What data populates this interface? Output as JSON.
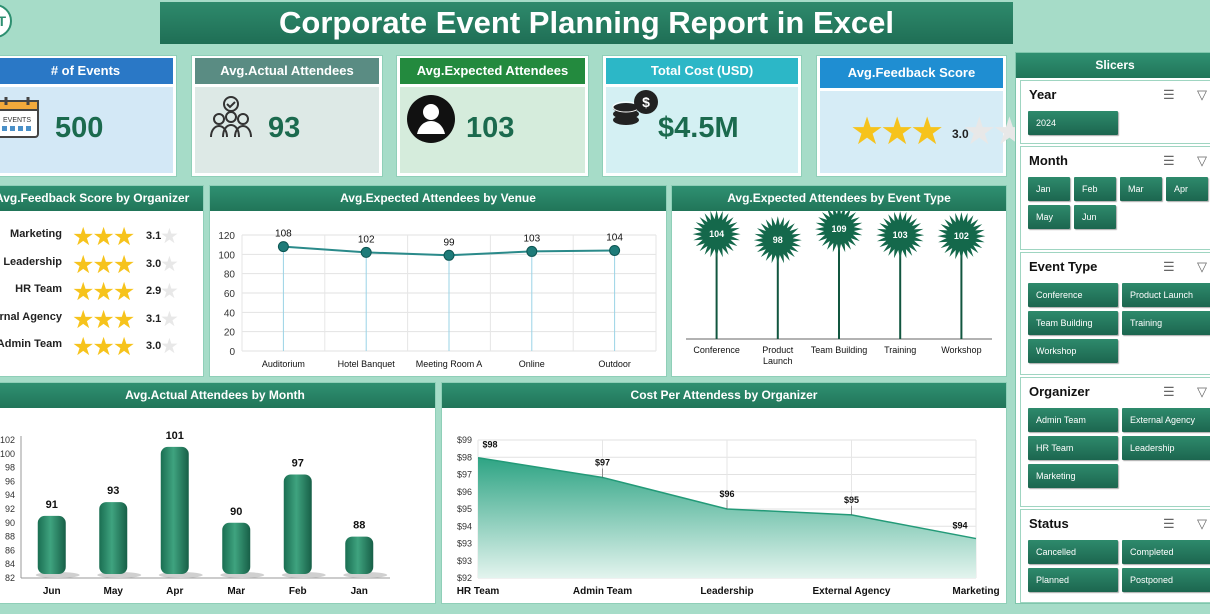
{
  "logo_text": "T",
  "title": "Corporate Event Planning Report in Excel",
  "kpis": {
    "events": {
      "label": "# of Events",
      "value": "500",
      "color": "#2a78c6"
    },
    "actual": {
      "label": "Avg.Actual Attendees",
      "value": "93",
      "color": "#5a8c83"
    },
    "expected": {
      "label": "Avg.Expected Attendees",
      "value": "103",
      "color": "#238a3e"
    },
    "cost": {
      "label": "Total Cost (USD)",
      "value": "$4.5M",
      "color": "#2cb7c7"
    },
    "feedback": {
      "label": "Avg.Feedback Score",
      "value": "3.0",
      "stars": 3,
      "color": "#1f8ed2"
    }
  },
  "icons": {
    "events": "calendar-icon",
    "actual": "group-icon",
    "expected": "person-icon",
    "cost": "coins-icon"
  },
  "chart_data": [
    {
      "type": "bar",
      "title": "Avg.Feedback Score by Organizer",
      "categories": [
        "Marketing",
        "Leadership",
        "HR Team",
        "External Agency",
        "Admin Team"
      ],
      "values": [
        3.1,
        3.0,
        2.9,
        3.1,
        3.0
      ],
      "value_labels": [
        "3.1",
        "3.0",
        "2.9",
        "3.1",
        "3.0"
      ],
      "max": 5
    },
    {
      "type": "line",
      "title": "Avg.Expected Attendees by Venue",
      "categories": [
        "Auditorium",
        "Hotel Banquet",
        "Meeting Room A",
        "Online",
        "Outdoor"
      ],
      "values": [
        108,
        102,
        99,
        103,
        104
      ],
      "yticks": [
        "0",
        "20",
        "40",
        "60",
        "80",
        "100",
        "120"
      ],
      "ylim": [
        0,
        120
      ],
      "grid": true
    },
    {
      "type": "bar",
      "title": "Avg.Expected Attendees by Event Type",
      "categories": [
        "Conference",
        "Product Launch",
        "Team Building",
        "Training",
        "Workshop"
      ],
      "category_lines": [
        [
          "Conference"
        ],
        [
          "Product",
          "Launch"
        ],
        [
          "Team Building"
        ],
        [
          "Training"
        ],
        [
          "Workshop"
        ]
      ],
      "values": [
        104,
        98,
        109,
        103,
        102
      ],
      "value_labels": [
        "104",
        "98",
        "109",
        "103",
        "102"
      ],
      "ylim": [
        0,
        115
      ]
    },
    {
      "type": "bar",
      "title": "Avg.Actual Attendees by Month",
      "categories": [
        "Jun",
        "May",
        "Apr",
        "Mar",
        "Feb",
        "Jan"
      ],
      "values": [
        91,
        93,
        101,
        90,
        97,
        88
      ],
      "value_labels": [
        "91",
        "93",
        "101",
        "90",
        "97",
        "88"
      ],
      "yticks": [
        "82",
        "84",
        "86",
        "88",
        "90",
        "92",
        "94",
        "96",
        "98",
        "100",
        "102"
      ],
      "ylim": [
        82,
        102
      ]
    },
    {
      "type": "area",
      "title": "Cost Per Attendess by Organizer",
      "categories": [
        "HR Team",
        "Admin Team",
        "Leadership",
        "External Agency",
        "Marketing"
      ],
      "values": [
        98.1,
        97.1,
        95.5,
        95.2,
        94.0
      ],
      "value_labels": [
        "$98",
        "$97",
        "$96",
        "$95",
        "$94"
      ],
      "yticks": [
        "$92",
        "$93",
        "$93",
        "$94",
        "$95",
        "$96",
        "$97",
        "$98",
        "$99"
      ],
      "ylim": [
        92,
        99
      ],
      "grid": true
    }
  ],
  "slicers": {
    "title": "Slicers",
    "groups": [
      {
        "title": "Year",
        "items": [
          "2024"
        ]
      },
      {
        "title": "Month",
        "items": [
          "Jan",
          "Feb",
          "Mar",
          "Apr",
          "May",
          "Jun"
        ]
      },
      {
        "title": "Event Type",
        "items": [
          "Conference",
          "Product Launch",
          "Team Building",
          "Training",
          "Workshop"
        ]
      },
      {
        "title": "Organizer",
        "items": [
          "Admin Team",
          "External Agency",
          "HR Team",
          "Leadership",
          "Marketing"
        ]
      },
      {
        "title": "Status",
        "items": [
          "Cancelled",
          "Completed",
          "Planned",
          "Postponed"
        ]
      }
    ]
  }
}
